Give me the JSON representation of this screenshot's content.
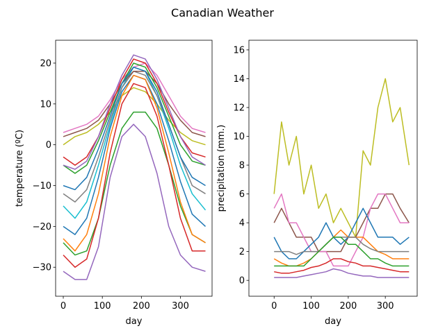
{
  "figure_title": "Canadian Weather",
  "palette": [
    "#1f77b4",
    "#ff7f0e",
    "#2ca02c",
    "#d62728",
    "#9467bd",
    "#8c564b",
    "#e377c2",
    "#7f7f7f",
    "#bcbd22",
    "#17becf"
  ],
  "chart_data": [
    {
      "type": "line",
      "title": "",
      "xlabel": "day",
      "ylabel": "temperature (ºC)",
      "xlim": [
        -19.6,
        381
      ],
      "ylim": [
        -37.1,
        25.6
      ],
      "xticks": [
        0,
        100,
        200,
        300
      ],
      "yticks": [
        -30,
        -20,
        -10,
        0,
        10,
        20
      ],
      "grid": false,
      "x": [
        0,
        30,
        60,
        90,
        120,
        150,
        180,
        210,
        240,
        270,
        300,
        330,
        364
      ],
      "series": [
        {
          "color": "#9467bd",
          "values": [
            -31,
            -33,
            -33,
            -25,
            -8,
            2,
            5,
            2,
            -7,
            -20,
            -27,
            -30,
            -31
          ]
        },
        {
          "color": "#e377c2",
          "values": [
            3,
            4,
            5,
            7,
            11,
            16,
            19,
            20,
            17,
            12,
            7,
            4,
            3
          ]
        },
        {
          "color": "#bcbd22",
          "values": [
            0,
            2,
            3,
            5,
            8,
            12,
            14,
            13,
            10,
            6,
            3,
            1,
            0
          ]
        },
        {
          "color": "#2ca02c",
          "values": [
            -24,
            -27,
            -26,
            -18,
            -5,
            4,
            8,
            8,
            4,
            -5,
            -15,
            -22,
            -24
          ]
        },
        {
          "color": "#d62728",
          "values": [
            -27,
            -30,
            -28,
            -18,
            -2,
            10,
            15,
            14,
            7,
            -5,
            -18,
            -26,
            -26
          ]
        },
        {
          "color": "#1f77b4",
          "values": [
            -20,
            -22,
            -18,
            -8,
            4,
            13,
            17,
            16,
            10,
            1,
            -9,
            -17,
            -20
          ]
        },
        {
          "color": "#ff7f0e",
          "values": [
            -23,
            -26,
            -22,
            -12,
            2,
            12,
            17,
            16,
            9,
            -2,
            -14,
            -22,
            -24
          ]
        },
        {
          "color": "#17becf",
          "values": [
            -15,
            -18,
            -14,
            -5,
            5,
            14,
            19,
            18,
            12,
            4,
            -5,
            -12,
            -16
          ]
        },
        {
          "color": "#7f7f7f",
          "values": [
            -12,
            -14,
            -11,
            -3,
            6,
            14,
            18,
            17,
            12,
            5,
            -3,
            -10,
            -12
          ]
        },
        {
          "color": "#8c564b",
          "values": [
            2,
            3,
            4,
            6,
            10,
            15,
            18,
            18,
            15,
            10,
            6,
            3,
            2
          ]
        },
        {
          "color": "#2ca02c",
          "values": [
            -5,
            -7,
            -5,
            1,
            8,
            15,
            20,
            19,
            14,
            7,
            0,
            -4,
            -5
          ]
        },
        {
          "color": "#d62728",
          "values": [
            -3,
            -5,
            -3,
            2,
            9,
            16,
            21,
            20,
            15,
            8,
            2,
            -2,
            -3
          ]
        },
        {
          "color": "#9467bd",
          "values": [
            -5,
            -6,
            -4,
            2,
            10,
            17,
            22,
            21,
            16,
            9,
            2,
            -3,
            -5
          ]
        },
        {
          "color": "#1f77b4",
          "values": [
            -10,
            -11,
            -8,
            -1,
            7,
            15,
            19,
            18,
            13,
            5,
            -3,
            -8,
            -10
          ]
        }
      ]
    },
    {
      "type": "line",
      "title": "",
      "xlabel": "day",
      "ylabel": "precipitation (mm.)",
      "xlim": [
        -68,
        386
      ],
      "ylim": [
        -1.1,
        16.67
      ],
      "xticks": [
        0,
        100,
        200,
        300
      ],
      "yticks": [
        0,
        2,
        4,
        6,
        8,
        10,
        12,
        14,
        16
      ],
      "grid": false,
      "x": [
        0,
        20,
        40,
        60,
        80,
        100,
        120,
        140,
        160,
        180,
        200,
        220,
        240,
        260,
        280,
        300,
        320,
        340,
        364
      ],
      "series": [
        {
          "color": "#bcbd22",
          "values": [
            6,
            11,
            8,
            10,
            6,
            8,
            5,
            6,
            4,
            5,
            4,
            3,
            9,
            8,
            12,
            14,
            11,
            12,
            8
          ]
        },
        {
          "color": "#8c564b",
          "values": [
            4,
            5,
            4,
            3,
            3,
            3,
            2,
            2,
            2,
            2,
            3,
            3,
            4,
            5,
            5,
            6,
            6,
            5,
            4
          ]
        },
        {
          "color": "#e377c2",
          "values": [
            5,
            6,
            4,
            4,
            3,
            2,
            2,
            2,
            1,
            1,
            1,
            2,
            3,
            5,
            6,
            6,
            5,
            4,
            4
          ]
        },
        {
          "color": "#1f77b4",
          "values": [
            3,
            2,
            1.5,
            1.5,
            2,
            2.5,
            3,
            4,
            3,
            2.5,
            3,
            4,
            5,
            4,
            3,
            3,
            3,
            2.5,
            3
          ]
        },
        {
          "color": "#ff7f0e",
          "values": [
            1.5,
            1.2,
            1,
            1,
            1.2,
            1.5,
            2,
            2.5,
            3,
            3.5,
            3,
            3,
            3,
            2.5,
            2,
            1.8,
            1.5,
            1.5,
            1.5
          ]
        },
        {
          "color": "#7f7f7f",
          "values": [
            2,
            2,
            2,
            1.8,
            2,
            2,
            2,
            2.5,
            3,
            3,
            3,
            3,
            2.5,
            2.2,
            2,
            2,
            2,
            2,
            2
          ]
        },
        {
          "color": "#2ca02c",
          "values": [
            1,
            1,
            1,
            1,
            1,
            1.5,
            2,
            2.5,
            3,
            3,
            2.5,
            2.5,
            2,
            1.5,
            1.5,
            1.2,
            1,
            1,
            1
          ]
        },
        {
          "color": "#d62728",
          "values": [
            0.6,
            0.5,
            0.5,
            0.6,
            0.7,
            0.9,
            1,
            1.2,
            1.5,
            1.5,
            1.3,
            1.2,
            1,
            1,
            0.9,
            0.8,
            0.7,
            0.6,
            0.6
          ]
        },
        {
          "color": "#9467bd",
          "values": [
            0.2,
            0.2,
            0.2,
            0.2,
            0.3,
            0.4,
            0.5,
            0.6,
            0.8,
            0.7,
            0.5,
            0.4,
            0.3,
            0.3,
            0.2,
            0.2,
            0.2,
            0.2,
            0.2
          ]
        }
      ]
    }
  ]
}
